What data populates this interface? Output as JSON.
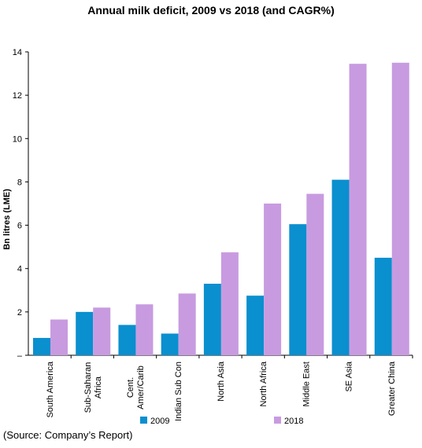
{
  "chart_data": {
    "type": "bar",
    "title": "Annual milk deficit, 2009 vs 2018 (and CAGR%)",
    "ylabel": "Bn litres (LME)",
    "xlabel": "",
    "ylim": [
      0,
      14
    ],
    "yticks": [
      0,
      2,
      4,
      6,
      8,
      10,
      12,
      14
    ],
    "ytick_labels": [
      "–",
      "2",
      "4",
      "6",
      "8",
      "10",
      "12",
      "14"
    ],
    "grid": false,
    "legend_position": "bottom",
    "categories": [
      "South America",
      "Sub-Saharan Africa",
      "Cent. Amer/Carib",
      "Indian Sub Con",
      "North Asia",
      "North Africa",
      "Middle East",
      "SE Asia",
      "Greater China"
    ],
    "category_lines": [
      [
        "South America"
      ],
      [
        "Sub-Saharan",
        "Africa"
      ],
      [
        "Cent.",
        "Amer/Carib"
      ],
      [
        "Indian Sub Con"
      ],
      [
        "North Asia"
      ],
      [
        "North Africa"
      ],
      [
        "Middle East"
      ],
      [
        "SE Asia"
      ],
      [
        "Greater China"
      ]
    ],
    "series": [
      {
        "name": "2009",
        "color": "#0a8fcf",
        "values": [
          0.8,
          2.0,
          1.4,
          1.0,
          3.3,
          2.75,
          6.05,
          8.1,
          4.5
        ]
      },
      {
        "name": "2018",
        "color": "#c89be0",
        "values": [
          1.65,
          2.2,
          2.35,
          2.85,
          4.75,
          7.0,
          7.45,
          13.45,
          13.5
        ]
      }
    ]
  },
  "source_note": "(Source: Company’s Report)"
}
